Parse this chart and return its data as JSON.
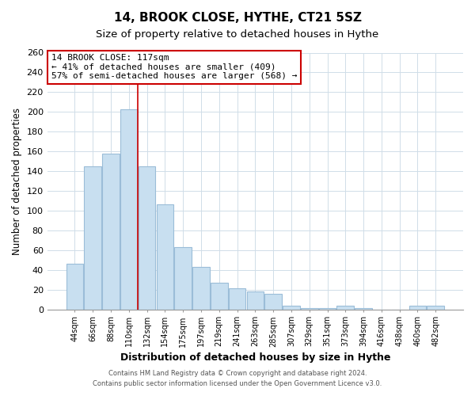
{
  "title1": "14, BROOK CLOSE, HYTHE, CT21 5SZ",
  "title2": "Size of property relative to detached houses in Hythe",
  "xlabel": "Distribution of detached houses by size in Hythe",
  "ylabel": "Number of detached properties",
  "categories": [
    "44sqm",
    "66sqm",
    "88sqm",
    "110sqm",
    "132sqm",
    "154sqm",
    "175sqm",
    "197sqm",
    "219sqm",
    "241sqm",
    "263sqm",
    "285sqm",
    "307sqm",
    "329sqm",
    "351sqm",
    "373sqm",
    "394sqm",
    "416sqm",
    "438sqm",
    "460sqm",
    "482sqm"
  ],
  "values": [
    46,
    145,
    158,
    203,
    145,
    106,
    63,
    43,
    27,
    21,
    18,
    16,
    4,
    1,
    1,
    4,
    1,
    0,
    0,
    4,
    4
  ],
  "bar_color": "#c8dff0",
  "bar_edgecolor": "#9bbdd8",
  "highlight_index": 3,
  "vline_color": "#cc0000",
  "annotation_text_line1": "14 BROOK CLOSE: 117sqm",
  "annotation_text_line2": "← 41% of detached houses are smaller (409)",
  "annotation_text_line3": "57% of semi-detached houses are larger (568) →",
  "ylim": [
    0,
    260
  ],
  "yticks": [
    0,
    20,
    40,
    60,
    80,
    100,
    120,
    140,
    160,
    180,
    200,
    220,
    240,
    260
  ],
  "footer1": "Contains HM Land Registry data © Crown copyright and database right 2024.",
  "footer2": "Contains public sector information licensed under the Open Government Licence v3.0.",
  "background_color": "#ffffff",
  "plot_background_color": "#ffffff",
  "grid_color": "#d0dde8"
}
